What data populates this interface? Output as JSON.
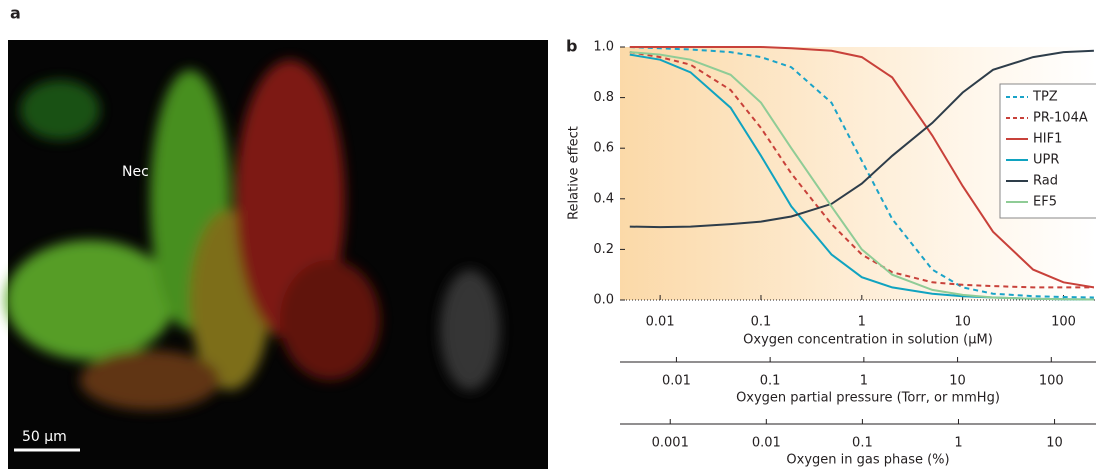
{
  "panel_a": {
    "label": "a",
    "annotation": "Nec",
    "scale_bar": "50 μm"
  },
  "chart_data": {
    "type": "line",
    "panel_label": "b",
    "ylabel": "Relative effect",
    "xlabel": "Oxygen concentration in solution (μM)",
    "xscale": "log",
    "xlim": [
      0.004,
      210
    ],
    "xticks": [
      0.01,
      0.1,
      1,
      10,
      100
    ],
    "ylim": [
      0,
      1
    ],
    "yticks": [
      {
        "value": 0,
        "label": "0.0"
      },
      0.2,
      0.4,
      0.6,
      0.8,
      {
        "value": 1,
        "label": "1.0"
      }
    ],
    "secondary_axes": [
      {
        "label": "Oxygen partial pressure (Torr, or mmHg)",
        "xlim": [
          0.0025,
          300
        ],
        "xticks": [
          0.01,
          0.1,
          1,
          10,
          100
        ]
      },
      {
        "label": "Oxygen in gas phase (%)",
        "xlim": [
          0.0003,
          27
        ],
        "xticks": [
          0.001,
          0.01,
          0.1,
          1,
          10
        ]
      }
    ],
    "legend": "upper right",
    "x": [
      0.005,
      0.01,
      0.02,
      0.05,
      0.1,
      0.2,
      0.5,
      1,
      2,
      5,
      10,
      20,
      50,
      100,
      200
    ],
    "series": [
      {
        "name": "TPZ",
        "color": "#1aa3c8",
        "linestyle": "dashed",
        "values": [
          1.0,
          0.995,
          0.99,
          0.98,
          0.96,
          0.92,
          0.78,
          0.55,
          0.32,
          0.12,
          0.05,
          0.025,
          0.015,
          0.012,
          0.01
        ]
      },
      {
        "name": "PR-104A",
        "color": "#c8413a",
        "linestyle": "dashed",
        "values": [
          0.98,
          0.96,
          0.93,
          0.83,
          0.68,
          0.5,
          0.3,
          0.18,
          0.11,
          0.07,
          0.06,
          0.055,
          0.05,
          0.05,
          0.05
        ]
      },
      {
        "name": "HIF1",
        "color": "#c8413a",
        "linestyle": "solid",
        "values": [
          1,
          1,
          1,
          1,
          1,
          0.995,
          0.985,
          0.96,
          0.88,
          0.65,
          0.45,
          0.27,
          0.12,
          0.07,
          0.05
        ]
      },
      {
        "name": "UPR",
        "color": "#10a3c0",
        "linestyle": "solid",
        "values": [
          0.97,
          0.95,
          0.9,
          0.76,
          0.57,
          0.37,
          0.18,
          0.09,
          0.05,
          0.025,
          0.015,
          0.01,
          0.005,
          0.003,
          0.002
        ]
      },
      {
        "name": "Rad",
        "color": "#2e3d4a",
        "linestyle": "solid",
        "values": [
          0.29,
          0.288,
          0.29,
          0.3,
          0.31,
          0.33,
          0.38,
          0.46,
          0.57,
          0.7,
          0.82,
          0.91,
          0.96,
          0.98,
          0.985
        ]
      },
      {
        "name": "EF5",
        "color": "#8fcc96",
        "linestyle": "solid",
        "values": [
          0.98,
          0.97,
          0.95,
          0.89,
          0.78,
          0.6,
          0.37,
          0.2,
          0.1,
          0.04,
          0.02,
          0.01,
          0.005,
          0.003,
          0.002
        ]
      }
    ]
  }
}
